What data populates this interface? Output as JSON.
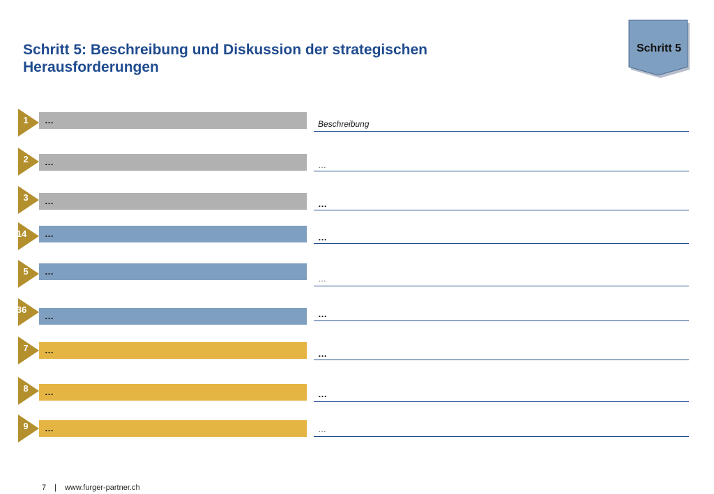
{
  "title": {
    "line1": "Schritt 5: Beschreibung und Diskussion der strategischen",
    "line2": "Herausforderungen"
  },
  "badge": {
    "label": "Schritt 5"
  },
  "colors": {
    "gray": "#b1b1b1",
    "blue": "#7f9fc1",
    "gold": "#e5b544",
    "marker": "#b38f2d",
    "title": "#1f4b8e",
    "line": "#1f4b8e"
  },
  "rows": [
    {
      "num": "1",
      "bar_text": "…",
      "color": "gray",
      "desc": "Beschreibung"
    },
    {
      "num": "2",
      "bar_text": "…",
      "color": "gray",
      "desc": "…"
    },
    {
      "num": "3",
      "bar_text": "…",
      "color": "gray",
      "desc": "…"
    },
    {
      "num": "14",
      "bar_text": "…",
      "color": "blue",
      "desc": "…"
    },
    {
      "num": "5",
      "bar_text": "…",
      "color": "blue",
      "desc": "…"
    },
    {
      "num": "36",
      "bar_text": "…",
      "color": "blue",
      "desc": "…"
    },
    {
      "num": "7",
      "bar_text": "…",
      "color": "gold",
      "desc": "…"
    },
    {
      "num": "8",
      "bar_text": "…",
      "color": "gold",
      "desc": "…"
    },
    {
      "num": "9",
      "bar_text": "…",
      "color": "gold",
      "desc": "…"
    }
  ],
  "footer": {
    "page": "7",
    "separator": "|",
    "url": "www.furger-partner.ch"
  }
}
